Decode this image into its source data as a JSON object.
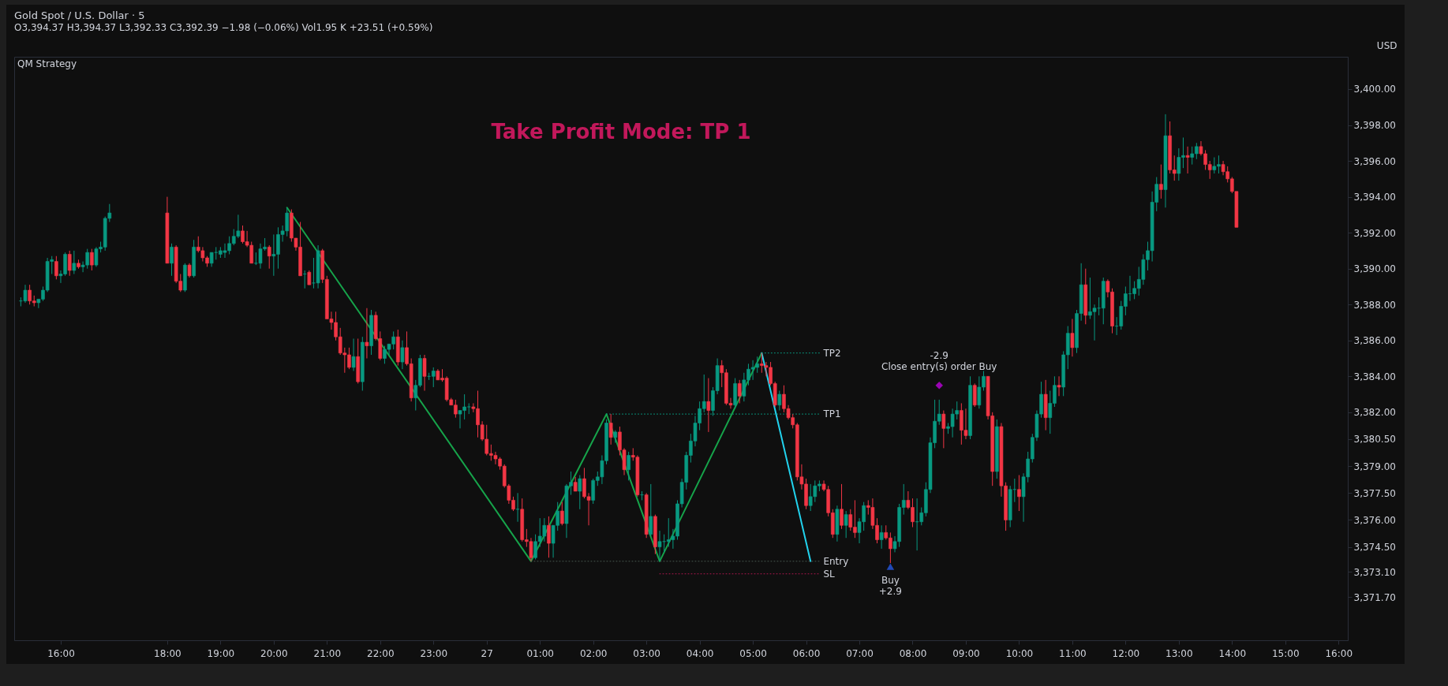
{
  "chart_data": {
    "type": "candlestick",
    "title": "Gold Spot / U.S. Dollar · 5",
    "subtitle": "O3,394.37 H3,394.37 L3,392.33 C3,392.39 −1.98 (−0.06%) Vol1.95 K +23.51 (+0.59%)",
    "ylabel": "USD",
    "annotations": [
      "QM Strategy",
      "Take Profit Mode: TP 1",
      {
        "text": "+2.9",
        "x": "--08-27T07:35",
        "y": 3373.4
      },
      {
        "text": "-2.9",
        "x": "--08-27T08:30",
        "y": 3383.5
      }
    ],
    "xlim": [
      "--08-26T15:12",
      "--08-27T16:06"
    ],
    "ylim": [
      3369.3,
      3401.8
    ],
    "xticks": [
      {
        "value": "--08-26T16:00",
        "label": "16:00"
      },
      {
        "value": "--08-26T18:00",
        "label": "18:00"
      },
      {
        "value": "--08-26T19:00",
        "label": "19:00"
      },
      {
        "value": "--08-26T20:00",
        "label": "20:00"
      },
      {
        "value": "--08-26T21:00",
        "label": "21:00"
      },
      {
        "value": "--08-26T22:00",
        "label": "22:00"
      },
      {
        "value": "--08-26T23:00",
        "label": "23:00"
      },
      {
        "value": "--08-27T00:00",
        "label": "27"
      },
      {
        "value": "--08-27T01:00",
        "label": "01:00"
      },
      {
        "value": "--08-27T02:00",
        "label": "02:00"
      },
      {
        "value": "--08-27T03:00",
        "label": "03:00"
      },
      {
        "value": "--08-27T04:00",
        "label": "04:00"
      },
      {
        "value": "--08-27T05:00",
        "label": "05:00"
      },
      {
        "value": "--08-27T06:00",
        "label": "06:00"
      },
      {
        "value": "--08-27T07:00",
        "label": "07:00"
      },
      {
        "value": "--08-27T08:00",
        "label": "08:00"
      },
      {
        "value": "--08-27T09:00",
        "label": "09:00"
      },
      {
        "value": "--08-27T10:00",
        "label": "10:00"
      },
      {
        "value": "--08-27T11:00",
        "label": "11:00"
      },
      {
        "value": "--08-27T12:00",
        "label": "12:00"
      },
      {
        "value": "--08-27T13:00",
        "label": "13:00"
      },
      {
        "value": "--08-27T14:00",
        "label": "14:00"
      },
      {
        "value": "--08-27T15:00",
        "label": "15:00"
      },
      {
        "value": "--08-27T16:00",
        "label": "16:00"
      }
    ],
    "yticks": [
      {
        "value": 3400,
        "label": "3,400.00"
      },
      {
        "value": 3398,
        "label": "3,398.00"
      },
      {
        "value": 3396,
        "label": "3,396.00"
      },
      {
        "value": 3394,
        "label": "3,394.00"
      },
      {
        "value": 3392,
        "label": "3,392.00"
      },
      {
        "value": 3390,
        "label": "3,390.00"
      },
      {
        "value": 3388,
        "label": "3,388.00"
      },
      {
        "value": 3386,
        "label": "3,386.00"
      },
      {
        "value": 3384,
        "label": "3,384.00"
      },
      {
        "value": 3382,
        "label": "3,382.00"
      },
      {
        "value": 3380.5,
        "label": "3,380.50"
      },
      {
        "value": 3379,
        "label": "3,379.00"
      },
      {
        "value": 3377.5,
        "label": "3,377.50"
      },
      {
        "value": 3376,
        "label": "3,376.00"
      },
      {
        "value": 3374.5,
        "label": "3,374.50"
      },
      {
        "value": 3373.1,
        "label": "3,373.10"
      },
      {
        "value": 3371.7,
        "label": "3,371.70"
      }
    ],
    "x": [
      "--08-26T15:15",
      "--08-26T15:20",
      "--08-26T15:25",
      "--08-26T15:30",
      "--08-26T15:35",
      "--08-26T15:40",
      "--08-26T15:45",
      "--08-26T15:50",
      "--08-26T15:55",
      "--08-26T16:00",
      "--08-26T16:05",
      "--08-26T16:10",
      "--08-26T16:15",
      "--08-26T16:20",
      "--08-26T16:25",
      "--08-26T16:30",
      "--08-26T16:35",
      "--08-26T16:40",
      "--08-26T16:45",
      "--08-26T16:50",
      "--08-26T16:55",
      "--08-26T18:00",
      "--08-26T18:05",
      "--08-26T18:10",
      "--08-26T18:15",
      "--08-26T18:20",
      "--08-26T18:25",
      "--08-26T18:30",
      "--08-26T18:35",
      "--08-26T18:40",
      "--08-26T18:45",
      "--08-26T18:50",
      "--08-26T18:55",
      "--08-26T19:00",
      "--08-26T19:05",
      "--08-26T19:10",
      "--08-26T19:15",
      "--08-26T19:20",
      "--08-26T19:25",
      "--08-26T19:30",
      "--08-26T19:35",
      "--08-26T19:40",
      "--08-26T19:45",
      "--08-26T19:50",
      "--08-26T19:55",
      "--08-26T20:00",
      "--08-26T20:05",
      "--08-26T20:10",
      "--08-26T20:15",
      "--08-26T20:20",
      "--08-26T20:25",
      "--08-26T20:30",
      "--08-26T20:35",
      "--08-26T20:40",
      "--08-26T20:45",
      "--08-26T20:50",
      "--08-26T20:55",
      "--08-26T21:00",
      "--08-26T21:05",
      "--08-26T21:10",
      "--08-26T21:15",
      "--08-26T21:20",
      "--08-26T21:25",
      "--08-26T21:30",
      "--08-26T21:35",
      "--08-26T21:40",
      "--08-26T21:45",
      "--08-26T21:50",
      "--08-26T21:55",
      "--08-26T22:00",
      "--08-26T22:05",
      "--08-26T22:10",
      "--08-26T22:15",
      "--08-26T22:20",
      "--08-26T22:25",
      "--08-26T22:30",
      "--08-26T22:35",
      "--08-26T22:40",
      "--08-26T22:45",
      "--08-26T22:50",
      "--08-26T22:55",
      "--08-26T23:00",
      "--08-26T23:05",
      "--08-26T23:10",
      "--08-26T23:15",
      "--08-26T23:20",
      "--08-26T23:25",
      "--08-26T23:30",
      "--08-26T23:35",
      "--08-26T23:40",
      "--08-26T23:45",
      "--08-26T23:50",
      "--08-26T23:55",
      "--08-27T00:00",
      "--08-27T00:05",
      "--08-27T00:10",
      "--08-27T00:15",
      "--08-27T00:20",
      "--08-27T00:25",
      "--08-27T00:30",
      "--08-27T00:35",
      "--08-27T00:40",
      "--08-27T00:45",
      "--08-27T00:50",
      "--08-27T00:55",
      "--08-27T01:00",
      "--08-27T01:05",
      "--08-27T01:10",
      "--08-27T01:15",
      "--08-27T01:20",
      "--08-27T01:25",
      "--08-27T01:30",
      "--08-27T01:35",
      "--08-27T01:40",
      "--08-27T01:45",
      "--08-27T01:50",
      "--08-27T01:55",
      "--08-27T02:00",
      "--08-27T02:05",
      "--08-27T02:10",
      "--08-27T02:15",
      "--08-27T02:20",
      "--08-27T02:25",
      "--08-27T02:30",
      "--08-27T02:35",
      "--08-27T02:40",
      "--08-27T02:45",
      "--08-27T02:50",
      "--08-27T02:55",
      "--08-27T03:00",
      "--08-27T03:05",
      "--08-27T03:10",
      "--08-27T03:15",
      "--08-27T03:20",
      "--08-27T03:25",
      "--08-27T03:30",
      "--08-27T03:35",
      "--08-27T03:40",
      "--08-27T03:45",
      "--08-27T03:50",
      "--08-27T03:55",
      "--08-27T04:00",
      "--08-27T04:05",
      "--08-27T04:10",
      "--08-27T04:15",
      "--08-27T04:20",
      "--08-27T04:25",
      "--08-27T04:30",
      "--08-27T04:35",
      "--08-27T04:40",
      "--08-27T04:45",
      "--08-27T04:50",
      "--08-27T04:55",
      "--08-27T05:00",
      "--08-27T05:05",
      "--08-27T05:10",
      "--08-27T05:15",
      "--08-27T05:20",
      "--08-27T05:25",
      "--08-27T05:30",
      "--08-27T05:35",
      "--08-27T05:40",
      "--08-27T05:45",
      "--08-27T05:50",
      "--08-27T05:55",
      "--08-27T06:00",
      "--08-27T06:05",
      "--08-27T06:10",
      "--08-27T06:15",
      "--08-27T06:20",
      "--08-27T06:25",
      "--08-27T06:30",
      "--08-27T06:35",
      "--08-27T06:40",
      "--08-27T06:45",
      "--08-27T06:50",
      "--08-27T06:55",
      "--08-27T07:00",
      "--08-27T07:05",
      "--08-27T07:10",
      "--08-27T07:15",
      "--08-27T07:20",
      "--08-27T07:25",
      "--08-27T07:30",
      "--08-27T07:35",
      "--08-27T07:40",
      "--08-27T07:45",
      "--08-27T07:50",
      "--08-27T07:55",
      "--08-27T08:00",
      "--08-27T08:05",
      "--08-27T08:10",
      "--08-27T08:15",
      "--08-27T08:20",
      "--08-27T08:25",
      "--08-27T08:30",
      "--08-27T08:35",
      "--08-27T08:40",
      "--08-27T08:45",
      "--08-27T08:50",
      "--08-27T08:55",
      "--08-27T09:00",
      "--08-27T09:05",
      "--08-27T09:10",
      "--08-27T09:15",
      "--08-27T09:20",
      "--08-27T09:25",
      "--08-27T09:30",
      "--08-27T09:35",
      "--08-27T09:40",
      "--08-27T09:45",
      "--08-27T09:50",
      "--08-27T09:55",
      "--08-27T10:00",
      "--08-27T10:05",
      "--08-27T10:10",
      "--08-27T10:15",
      "--08-27T10:20",
      "--08-27T10:25",
      "--08-27T10:30",
      "--08-27T10:35",
      "--08-27T10:40",
      "--08-27T10:45",
      "--08-27T10:50",
      "--08-27T10:55",
      "--08-27T11:00",
      "--08-27T11:05",
      "--08-27T11:10",
      "--08-27T11:15",
      "--08-27T11:20",
      "--08-27T11:25",
      "--08-27T11:30",
      "--08-27T11:35",
      "--08-27T11:40",
      "--08-27T11:45",
      "--08-27T11:50",
      "--08-27T11:55",
      "--08-27T12:00",
      "--08-27T12:05",
      "--08-27T12:10",
      "--08-27T12:15",
      "--08-27T12:20",
      "--08-27T12:25",
      "--08-27T12:30",
      "--08-27T12:35",
      "--08-27T12:40",
      "--08-27T12:45",
      "--08-27T12:50",
      "--08-27T12:55",
      "--08-27T13:00",
      "--08-27T13:05",
      "--08-27T13:10",
      "--08-27T13:15",
      "--08-27T13:20",
      "--08-27T13:25",
      "--08-27T13:30",
      "--08-27T13:35",
      "--08-27T13:40",
      "--08-27T13:45",
      "--08-27T13:50",
      "--08-27T13:55",
      "--08-27T14:00",
      "--08-27T14:05"
    ],
    "ohlc": [
      [
        3388.2,
        3388.4,
        3387.9,
        3388.2
      ],
      [
        3388.2,
        3389.1,
        3388.1,
        3388.8
      ],
      [
        3388.8,
        3389.1,
        3388.0,
        3388.2
      ],
      [
        3388.2,
        3388.5,
        3387.9,
        3388.1
      ],
      [
        3388.1,
        3388.3,
        3387.8,
        3388.3
      ],
      [
        3388.3,
        3389.0,
        3388.2,
        3388.8
      ],
      [
        3388.8,
        3390.6,
        3388.7,
        3390.4
      ],
      [
        3390.4,
        3390.7,
        3389.7,
        3390.5
      ],
      [
        3390.4,
        3390.7,
        3389.4,
        3389.6
      ],
      [
        3389.6,
        3389.9,
        3389.2,
        3389.7
      ],
      [
        3389.7,
        3390.9,
        3389.6,
        3390.8
      ],
      [
        3390.8,
        3391.0,
        3389.6,
        3389.9
      ],
      [
        3389.9,
        3391.0,
        3389.7,
        3390.3
      ],
      [
        3390.3,
        3390.5,
        3390.0,
        3390.1
      ],
      [
        3390.1,
        3390.4,
        3389.8,
        3390.2
      ],
      [
        3390.2,
        3391.1,
        3390.0,
        3390.9
      ],
      [
        3390.9,
        3391.1,
        3389.9,
        3390.2
      ],
      [
        3390.2,
        3391.2,
        3390.1,
        3391.1
      ],
      [
        3391.1,
        3391.5,
        3390.9,
        3391.2
      ],
      [
        3391.2,
        3392.9,
        3391.0,
        3392.8
      ],
      [
        3392.8,
        3393.6,
        3392.6,
        3393.1
      ],
      [
        3393.1,
        3394.0,
        3390.3,
        3390.3
      ],
      [
        3390.3,
        3391.4,
        3389.6,
        3391.2
      ],
      [
        3391.2,
        3391.3,
        3389.2,
        3389.3
      ],
      [
        3389.3,
        3389.7,
        3388.7,
        3388.8
      ],
      [
        3388.8,
        3390.3,
        3388.7,
        3390.2
      ],
      [
        3390.2,
        3390.3,
        3389.5,
        3389.6
      ],
      [
        3389.6,
        3391.6,
        3389.5,
        3391.2
      ],
      [
        3391.2,
        3391.8,
        3390.9,
        3391.0
      ],
      [
        3391.0,
        3391.2,
        3390.4,
        3390.6
      ],
      [
        3390.6,
        3390.7,
        3390.1,
        3390.3
      ],
      [
        3390.3,
        3390.9,
        3390.1,
        3390.9
      ],
      [
        3390.9,
        3391.2,
        3390.5,
        3390.9
      ],
      [
        3390.8,
        3391.2,
        3390.6,
        3391.0
      ],
      [
        3390.9,
        3391.4,
        3390.6,
        3391.0
      ],
      [
        3391.0,
        3391.8,
        3390.8,
        3391.4
      ],
      [
        3391.4,
        3392.2,
        3391.3,
        3391.8
      ],
      [
        3391.8,
        3393.0,
        3391.7,
        3392.1
      ],
      [
        3392.1,
        3392.4,
        3391.4,
        3391.5
      ],
      [
        3391.5,
        3392.1,
        3391.2,
        3391.3
      ],
      [
        3391.3,
        3391.5,
        3390.3,
        3390.3
      ],
      [
        3390.3,
        3390.9,
        3390.2,
        3390.3
      ],
      [
        3390.3,
        3391.4,
        3390.0,
        3391.1
      ],
      [
        3391.1,
        3391.7,
        3391.0,
        3391.2
      ],
      [
        3391.2,
        3391.3,
        3390.0,
        3390.7
      ],
      [
        3390.7,
        3391.9,
        3389.6,
        3390.8
      ],
      [
        3390.8,
        3392.3,
        3390.0,
        3391.9
      ],
      [
        3391.9,
        3392.4,
        3391.5,
        3392.1
      ],
      [
        3392.1,
        3393.4,
        3391.8,
        3393.1
      ],
      [
        3393.1,
        3393.3,
        3391.5,
        3391.7
      ],
      [
        3391.7,
        3391.7,
        3391.0,
        3391.2
      ],
      [
        3391.2,
        3392.6,
        3389.6,
        3389.6
      ],
      [
        3389.7,
        3389.9,
        3388.9,
        3389.7
      ],
      [
        3389.8,
        3389.9,
        3389.1,
        3389.1
      ],
      [
        3389.2,
        3390.6,
        3388.9,
        3389.2
      ],
      [
        3389.2,
        3391.3,
        3388.9,
        3391.0
      ],
      [
        3391.0,
        3391.1,
        3389.2,
        3389.4
      ],
      [
        3389.4,
        3389.6,
        3387.2,
        3387.2
      ],
      [
        3387.2,
        3387.6,
        3386.6,
        3387.0
      ],
      [
        3387.0,
        3387.6,
        3386.0,
        3386.2
      ],
      [
        3386.2,
        3386.7,
        3385.2,
        3385.3
      ],
      [
        3385.3,
        3385.6,
        3384.2,
        3385.2
      ],
      [
        3385.2,
        3385.6,
        3384.4,
        3384.5
      ],
      [
        3384.5,
        3386.1,
        3384.3,
        3385.1
      ],
      [
        3385.1,
        3386.1,
        3383.6,
        3383.7
      ],
      [
        3383.7,
        3386.2,
        3383.2,
        3385.9
      ],
      [
        3385.9,
        3387.8,
        3385.0,
        3385.7
      ],
      [
        3385.7,
        3387.7,
        3385.2,
        3387.4
      ],
      [
        3387.4,
        3387.6,
        3386.0,
        3386.1
      ],
      [
        3386.1,
        3386.5,
        3384.9,
        3385.0
      ],
      [
        3385.0,
        3385.7,
        3384.7,
        3385.5
      ],
      [
        3385.5,
        3385.8,
        3385.2,
        3385.8
      ],
      [
        3385.8,
        3386.5,
        3385.5,
        3386.2
      ],
      [
        3386.2,
        3386.6,
        3384.6,
        3384.8
      ],
      [
        3384.8,
        3386.0,
        3384.4,
        3385.6
      ],
      [
        3385.6,
        3386.5,
        3384.6,
        3384.7
      ],
      [
        3384.7,
        3385.0,
        3382.6,
        3382.8
      ],
      [
        3382.8,
        3383.8,
        3382.1,
        3383.5
      ],
      [
        3383.5,
        3385.2,
        3383.4,
        3385.0
      ],
      [
        3385.0,
        3385.2,
        3383.2,
        3384.0
      ],
      [
        3384.0,
        3384.2,
        3383.8,
        3384.0
      ],
      [
        3384.0,
        3384.5,
        3383.4,
        3384.3
      ],
      [
        3384.3,
        3384.4,
        3383.8,
        3383.8
      ],
      [
        3383.9,
        3384.4,
        3383.7,
        3383.8
      ],
      [
        3383.9,
        3384.0,
        3382.6,
        3382.7
      ],
      [
        3382.7,
        3382.8,
        3382.4,
        3382.4
      ],
      [
        3382.4,
        3382.7,
        3381.7,
        3381.9
      ],
      [
        3381.9,
        3382.1,
        3381.1,
        3382.1
      ],
      [
        3382.1,
        3383.0,
        3381.6,
        3382.3
      ],
      [
        3382.3,
        3382.5,
        3381.9,
        3382.3
      ],
      [
        3382.3,
        3382.5,
        3382.0,
        3382.2
      ],
      [
        3382.2,
        3383.2,
        3380.6,
        3381.3
      ],
      [
        3381.3,
        3381.5,
        3380.4,
        3380.5
      ],
      [
        3380.5,
        3381.3,
        3379.6,
        3379.7
      ],
      [
        3379.7,
        3380.2,
        3379.3,
        3379.6
      ],
      [
        3379.6,
        3379.8,
        3379.1,
        3379.4
      ],
      [
        3379.4,
        3379.5,
        3378.8,
        3379.0
      ],
      [
        3379.0,
        3379.1,
        3377.8,
        3377.9
      ],
      [
        3377.9,
        3378.0,
        3376.9,
        3377.1
      ],
      [
        3377.1,
        3377.3,
        3376.5,
        3376.6
      ],
      [
        3376.6,
        3377.5,
        3375.9,
        3376.6
      ],
      [
        3376.6,
        3377.2,
        3374.8,
        3374.9
      ],
      [
        3374.9,
        3375.5,
        3374.5,
        3374.8
      ],
      [
        3374.8,
        3375.0,
        3373.7,
        3373.9
      ],
      [
        3373.9,
        3375.2,
        3373.8,
        3374.8
      ],
      [
        3374.8,
        3376.1,
        3374.5,
        3375.1
      ],
      [
        3375.1,
        3376.1,
        3374.8,
        3375.7
      ],
      [
        3375.7,
        3376.2,
        3373.9,
        3374.7
      ],
      [
        3374.7,
        3375.7,
        3373.9,
        3375.7
      ],
      [
        3375.7,
        3377.0,
        3375.4,
        3376.5
      ],
      [
        3376.5,
        3377.0,
        3375.7,
        3375.8
      ],
      [
        3375.8,
        3378.0,
        3375.0,
        3377.9
      ],
      [
        3377.9,
        3378.7,
        3377.4,
        3378.1
      ],
      [
        3378.1,
        3378.4,
        3377.6,
        3377.6
      ],
      [
        3377.6,
        3378.5,
        3376.6,
        3378.3
      ],
      [
        3378.3,
        3378.9,
        3377.2,
        3377.3
      ],
      [
        3377.3,
        3377.5,
        3375.7,
        3377.1
      ],
      [
        3377.1,
        3378.3,
        3376.9,
        3378.2
      ],
      [
        3378.2,
        3378.7,
        3377.9,
        3378.4
      ],
      [
        3378.4,
        3379.6,
        3378.0,
        3379.3
      ],
      [
        3379.3,
        3381.6,
        3379.1,
        3381.4
      ],
      [
        3381.4,
        3381.9,
        3380.2,
        3380.6
      ],
      [
        3380.6,
        3381.0,
        3380.3,
        3380.9
      ],
      [
        3380.9,
        3381.2,
        3379.6,
        3379.9
      ],
      [
        3379.9,
        3380.0,
        3378.5,
        3378.8
      ],
      [
        3378.8,
        3379.8,
        3378.2,
        3379.6
      ],
      [
        3379.6,
        3380.0,
        3379.3,
        3379.5
      ],
      [
        3379.5,
        3379.6,
        3377.3,
        3377.4
      ],
      [
        3377.4,
        3377.6,
        3377.1,
        3377.4
      ],
      [
        3377.4,
        3377.5,
        3375.0,
        3375.2
      ],
      [
        3375.2,
        3378.0,
        3375.1,
        3376.2
      ],
      [
        3376.2,
        3376.3,
        3374.1,
        3374.5
      ],
      [
        3374.5,
        3375.4,
        3373.7,
        3374.8
      ],
      [
        3374.8,
        3375.2,
        3374.2,
        3374.8
      ],
      [
        3374.8,
        3376.1,
        3374.5,
        3374.9
      ],
      [
        3374.9,
        3375.5,
        3374.4,
        3375.1
      ],
      [
        3375.1,
        3377.1,
        3374.9,
        3376.9
      ],
      [
        3376.9,
        3378.3,
        3376.7,
        3378.1
      ],
      [
        3378.1,
        3379.8,
        3377.7,
        3379.6
      ],
      [
        3379.6,
        3380.8,
        3379.2,
        3380.4
      ],
      [
        3380.4,
        3381.8,
        3380.1,
        3381.4
      ],
      [
        3381.4,
        3382.6,
        3381.0,
        3382.2
      ],
      [
        3382.2,
        3384.1,
        3382.0,
        3382.6
      ],
      [
        3382.6,
        3383.9,
        3380.9,
        3382.1
      ],
      [
        3382.1,
        3383.4,
        3381.8,
        3383.2
      ],
      [
        3383.2,
        3385.0,
        3383.0,
        3384.6
      ],
      [
        3384.6,
        3384.9,
        3383.4,
        3384.2
      ],
      [
        3384.2,
        3384.4,
        3382.4,
        3382.5
      ],
      [
        3382.5,
        3382.8,
        3382.2,
        3382.4
      ],
      [
        3382.4,
        3383.9,
        3382.2,
        3383.6
      ],
      [
        3383.6,
        3383.8,
        3382.5,
        3382.9
      ],
      [
        3382.9,
        3384.2,
        3382.6,
        3383.8
      ],
      [
        3383.8,
        3384.7,
        3383.5,
        3384.4
      ],
      [
        3384.4,
        3384.9,
        3383.8,
        3384.5
      ],
      [
        3384.5,
        3385.1,
        3384.2,
        3384.7
      ],
      [
        3384.7,
        3385.3,
        3384.2,
        3384.6
      ],
      [
        3384.6,
        3384.8,
        3384.0,
        3384.5
      ],
      [
        3384.5,
        3384.8,
        3383.5,
        3383.6
      ],
      [
        3383.6,
        3383.7,
        3382.3,
        3382.4
      ],
      [
        3382.4,
        3383.2,
        3382.1,
        3383.0
      ],
      [
        3383.0,
        3383.5,
        3382.0,
        3382.2
      ],
      [
        3382.2,
        3382.4,
        3381.6,
        3381.7
      ],
      [
        3381.7,
        3381.9,
        3381.1,
        3381.3
      ],
      [
        3381.3,
        3381.4,
        3378.2,
        3378.4
      ],
      [
        3378.4,
        3379.1,
        3377.7,
        3378.0
      ],
      [
        3378.0,
        3378.3,
        3376.6,
        3376.8
      ],
      [
        3376.8,
        3378.0,
        3376.5,
        3377.3
      ],
      [
        3377.3,
        3378.2,
        3377.0,
        3377.9
      ],
      [
        3377.9,
        3378.2,
        3377.6,
        3378.0
      ],
      [
        3378.0,
        3378.2,
        3377.6,
        3377.7
      ],
      [
        3377.7,
        3377.9,
        3376.2,
        3376.4
      ],
      [
        3376.4,
        3376.6,
        3375.0,
        3375.2
      ],
      [
        3375.2,
        3376.8,
        3374.8,
        3376.6
      ],
      [
        3376.6,
        3378.0,
        3375.5,
        3375.7
      ],
      [
        3375.7,
        3376.5,
        3375.0,
        3376.3
      ],
      [
        3376.3,
        3376.6,
        3375.4,
        3375.6
      ],
      [
        3375.6,
        3377.1,
        3375.0,
        3375.3
      ],
      [
        3375.3,
        3376.1,
        3374.7,
        3375.9
      ],
      [
        3375.9,
        3377.0,
        3375.4,
        3376.8
      ],
      [
        3376.8,
        3377.1,
        3376.3,
        3376.7
      ],
      [
        3376.7,
        3377.2,
        3375.5,
        3375.7
      ],
      [
        3375.7,
        3376.1,
        3374.7,
        3374.9
      ],
      [
        3374.9,
        3375.7,
        3374.4,
        3375.3
      ],
      [
        3375.3,
        3375.7,
        3374.9,
        3375.0
      ],
      [
        3375.0,
        3375.3,
        3373.6,
        3374.4
      ],
      [
        3374.4,
        3375.1,
        3374.2,
        3374.8
      ],
      [
        3374.8,
        3376.9,
        3374.5,
        3376.7
      ],
      [
        3376.7,
        3378.0,
        3376.3,
        3377.1
      ],
      [
        3377.1,
        3377.6,
        3376.6,
        3376.7
      ],
      [
        3376.7,
        3377.2,
        3375.6,
        3375.9
      ],
      [
        3375.9,
        3377.2,
        3374.3,
        3375.9
      ],
      [
        3375.9,
        3376.7,
        3375.7,
        3376.4
      ],
      [
        3376.4,
        3378.1,
        3376.2,
        3377.7
      ],
      [
        3377.7,
        3380.6,
        3377.5,
        3380.3
      ],
      [
        3380.3,
        3382.7,
        3380.0,
        3381.5
      ],
      [
        3381.5,
        3382.7,
        3381.3,
        3381.9
      ],
      [
        3381.9,
        3382.1,
        3380.0,
        3381.1
      ],
      [
        3381.1,
        3381.4,
        3380.8,
        3381.2
      ],
      [
        3381.2,
        3382.2,
        3380.6,
        3381.9
      ],
      [
        3381.9,
        3382.6,
        3381.6,
        3382.1
      ],
      [
        3382.1,
        3382.5,
        3380.2,
        3381.0
      ],
      [
        3381.0,
        3382.2,
        3380.5,
        3380.7
      ],
      [
        3380.7,
        3384.0,
        3380.5,
        3383.5
      ],
      [
        3383.5,
        3383.6,
        3382.3,
        3382.4
      ],
      [
        3382.4,
        3384.0,
        3382.2,
        3383.4
      ],
      [
        3383.4,
        3384.3,
        3383.2,
        3384.0
      ],
      [
        3384.0,
        3384.0,
        3381.6,
        3381.8
      ],
      [
        3381.8,
        3382.0,
        3377.9,
        3378.7
      ],
      [
        3378.7,
        3381.6,
        3378.3,
        3381.2
      ],
      [
        3381.2,
        3381.4,
        3377.3,
        3377.9
      ],
      [
        3377.9,
        3378.1,
        3375.4,
        3376.0
      ],
      [
        3376.0,
        3377.9,
        3375.6,
        3377.7
      ],
      [
        3377.7,
        3378.3,
        3377.0,
        3377.7
      ],
      [
        3377.7,
        3378.5,
        3376.5,
        3377.3
      ],
      [
        3377.3,
        3378.6,
        3375.9,
        3378.4
      ],
      [
        3378.4,
        3379.8,
        3378.1,
        3379.4
      ],
      [
        3379.4,
        3380.8,
        3379.2,
        3380.6
      ],
      [
        3380.6,
        3382.1,
        3380.4,
        3381.9
      ],
      [
        3381.9,
        3383.7,
        3381.7,
        3383.0
      ],
      [
        3383.0,
        3383.8,
        3381.0,
        3381.7
      ],
      [
        3381.7,
        3383.2,
        3380.8,
        3382.5
      ],
      [
        3382.5,
        3384.0,
        3382.3,
        3383.5
      ],
      [
        3383.5,
        3384.0,
        3382.9,
        3383.4
      ],
      [
        3383.4,
        3385.4,
        3382.9,
        3385.2
      ],
      [
        3385.2,
        3386.8,
        3384.4,
        3386.4
      ],
      [
        3386.4,
        3387.2,
        3385.1,
        3385.6
      ],
      [
        3385.6,
        3387.7,
        3385.3,
        3387.5
      ],
      [
        3387.5,
        3390.3,
        3387.1,
        3389.1
      ],
      [
        3389.1,
        3390.0,
        3386.9,
        3387.4
      ],
      [
        3387.4,
        3389.5,
        3387.2,
        3387.6
      ],
      [
        3387.6,
        3388.0,
        3386.0,
        3387.8
      ],
      [
        3387.8,
        3388.4,
        3387.4,
        3387.8
      ],
      [
        3387.8,
        3389.5,
        3386.9,
        3389.3
      ],
      [
        3389.3,
        3389.4,
        3388.4,
        3388.7
      ],
      [
        3388.7,
        3388.9,
        3386.4,
        3386.8
      ],
      [
        3386.8,
        3387.3,
        3386.3,
        3386.8
      ],
      [
        3386.8,
        3388.2,
        3386.6,
        3387.9
      ],
      [
        3387.9,
        3389.0,
        3387.4,
        3388.6
      ],
      [
        3388.6,
        3389.6,
        3388.2,
        3388.6
      ],
      [
        3388.6,
        3389.3,
        3388.3,
        3388.9
      ],
      [
        3388.9,
        3390.1,
        3388.5,
        3389.4
      ],
      [
        3389.4,
        3390.8,
        3389.1,
        3390.5
      ],
      [
        3390.5,
        3391.5,
        3389.9,
        3391.0
      ],
      [
        3391.0,
        3394.3,
        3390.4,
        3393.7
      ],
      [
        3393.7,
        3395.1,
        3393.2,
        3394.7
      ],
      [
        3394.7,
        3395.8,
        3393.9,
        3394.4
      ],
      [
        3394.4,
        3398.6,
        3393.4,
        3397.4
      ],
      [
        3397.4,
        3398.2,
        3395.3,
        3395.5
      ],
      [
        3395.5,
        3396.3,
        3394.9,
        3395.3
      ],
      [
        3395.3,
        3396.7,
        3394.9,
        3396.2
      ],
      [
        3396.2,
        3397.3,
        3395.6,
        3396.3
      ],
      [
        3396.3,
        3396.8,
        3395.3,
        3396.2
      ],
      [
        3396.2,
        3396.8,
        3395.8,
        3396.4
      ],
      [
        3396.4,
        3397.0,
        3396.1,
        3396.8
      ],
      [
        3396.8,
        3397.1,
        3396.3,
        3396.4
      ],
      [
        3396.4,
        3396.6,
        3395.5,
        3395.8
      ],
      [
        3395.8,
        3396.0,
        3395.0,
        3395.5
      ],
      [
        3395.5,
        3396.2,
        3395.3,
        3395.7
      ],
      [
        3395.7,
        3396.3,
        3395.3,
        3395.8
      ],
      [
        3395.8,
        3396.0,
        3395.2,
        3395.4
      ],
      [
        3395.4,
        3395.7,
        3394.8,
        3395.0
      ],
      [
        3395.0,
        3395.1,
        3394.2,
        3394.3
      ],
      [
        3394.3,
        3394.3,
        3392.3,
        3392.3
      ]
    ],
    "series": [
      {
        "type": "line",
        "color": "#16a34a",
        "x": [
          "--08-26T20:15",
          "--08-27T00:50",
          "--08-27T02:15",
          "--08-27T03:15",
          "--08-27T05:10"
        ],
        "values": [
          3393.4,
          3373.7,
          3381.9,
          3373.7,
          3385.3
        ]
      },
      {
        "type": "line",
        "color": "#22d3ee",
        "x": [
          "--08-27T05:10",
          "--08-27T06:05"
        ],
        "values": [
          3385.3,
          3373.7
        ]
      },
      {
        "type": "line",
        "name": "TP2",
        "color": "#089981",
        "line_style": "dotted",
        "x": [
          "--08-27T05:10",
          "--08-27T06:15"
        ],
        "values": [
          3385.3,
          3385.3
        ]
      },
      {
        "type": "line",
        "name": "TP1",
        "color": "#089981",
        "line_style": "dotted",
        "x": [
          "--08-27T02:15",
          "--08-27T06:15"
        ],
        "values": [
          3381.9,
          3381.9
        ]
      },
      {
        "type": "line",
        "name": "Entry",
        "color": "#4a5a52",
        "line_style": "dotted",
        "x": [
          "--08-27T00:50",
          "--08-27T06:15"
        ],
        "values": [
          3373.7,
          3373.7
        ]
      },
      {
        "type": "line",
        "name": "SL",
        "color": "#b0174f",
        "line_style": "dotted",
        "x": [
          "--08-27T03:15",
          "--08-27T06:15"
        ],
        "values": [
          3373.0,
          3373.0
        ]
      },
      {
        "type": "scatter",
        "name": "Buy",
        "marker": "triangle",
        "color": "#2962ff",
        "x": [
          "--08-27T07:35"
        ],
        "values": [
          3373.4
        ]
      },
      {
        "type": "scatter",
        "name": "Close entry(s) order Buy",
        "marker": "diamond",
        "color": "#d500f9",
        "x": [
          "--08-27T08:30"
        ],
        "values": [
          3383.5
        ]
      }
    ]
  }
}
